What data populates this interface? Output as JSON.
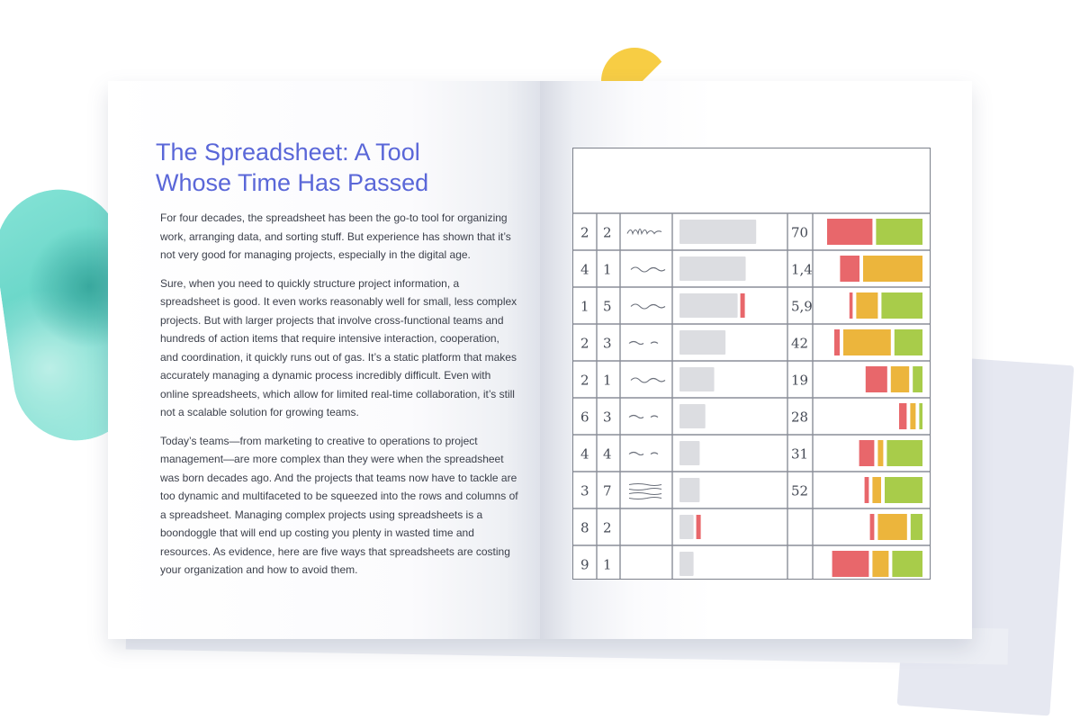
{
  "article": {
    "title_line1": "The Spreadsheet: A Tool",
    "title_line2": "Whose Time Has Passed",
    "paragraphs": [
      "For four decades, the spreadsheet has been the go-to tool for organizing work, arranging data, and sorting stuff. But experience has shown that it’s not very good for managing projects, especially in the digital age.",
      "Sure, when you need to quickly structure project information, a spreadsheet is good. It even works reasonably well for small, less complex projects. But with larger projects that involve cross-functional teams and hundreds of action items that require intensive interaction, cooperation, and coordination, it quickly runs out of gas. It’s a static platform that makes accurately managing a dynamic process incredibly difficult. Even with online spreadsheets, which allow for limited real-time collaboration, it’s still not a scalable solution for growing teams.",
      "Today’s teams—from marketing to creative to operations to project management—are more complex than they were when the spreadsheet was born decades ago. And the projects that teams now have to tackle are too dynamic and multifaceted to be squeezed into the rows and columns of a spreadsheet. Managing complex projects using spreadsheets is a boondoggle that will end up costing you plenty in wasted time and resources. As evidence, here are five ways that spreadsheets are costing your organization and how to avoid them."
    ]
  },
  "colors": {
    "title": "#5a67d8",
    "red": "#e8676b",
    "amber": "#ecb53c",
    "green": "#a8cc4a",
    "grey_bar": "#dcdde1",
    "accent_yellow": "#f7cd44",
    "teal": "#5fd3c5"
  },
  "spreadsheet": {
    "rows": [
      {
        "c1": "2",
        "c2": "2",
        "scribble": "mlm",
        "bar": 0.95,
        "tick": false,
        "num": "70",
        "red": 0.42,
        "amber": 0,
        "green": 0.43
      },
      {
        "c1": "4",
        "c2": "1",
        "scribble": "wave",
        "bar": 0.82,
        "tick": false,
        "num": "1,4",
        "red": 0.18,
        "amber": 0.55,
        "green": 0
      },
      {
        "c1": "1",
        "c2": "5",
        "scribble": "wave",
        "bar": 0.72,
        "tick": true,
        "num": "5,9",
        "red": 0.03,
        "amber": 0.2,
        "green": 0.38
      },
      {
        "c1": "2",
        "c2": "3",
        "scribble": "dash",
        "bar": 0.57,
        "tick": false,
        "num": "42",
        "red": 0.05,
        "amber": 0.44,
        "green": 0.26
      },
      {
        "c1": "2",
        "c2": "1",
        "scribble": "wave",
        "bar": 0.43,
        "tick": false,
        "num": "19",
        "red": 0.2,
        "amber": 0.17,
        "green": 0.09
      },
      {
        "c1": "6",
        "c2": "3",
        "scribble": "dash",
        "bar": 0.32,
        "tick": false,
        "num": "28",
        "red": 0.07,
        "amber": 0.05,
        "green": 0.03
      },
      {
        "c1": "4",
        "c2": "4",
        "scribble": "dash",
        "bar": 0.25,
        "tick": false,
        "num": "31",
        "red": 0.14,
        "amber": 0.05,
        "green": 0.33
      },
      {
        "c1": "3",
        "c2": "7",
        "scribble": "lines",
        "bar": 0.25,
        "tick": false,
        "num": "52",
        "red": 0.04,
        "amber": 0.08,
        "green": 0.35
      },
      {
        "c1": "8",
        "c2": "2",
        "scribble": "",
        "bar": 0.17,
        "tick": true,
        "num": "",
        "red": 0.04,
        "amber": 0.27,
        "green": 0.11
      },
      {
        "c1": "9",
        "c2": "1",
        "scribble": "",
        "bar": 0.17,
        "tick": false,
        "num": "",
        "red": 0.34,
        "amber": 0.15,
        "green": 0.28
      }
    ]
  }
}
